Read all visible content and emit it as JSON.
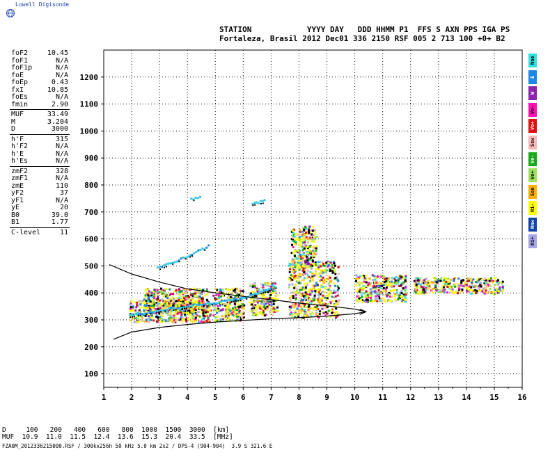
{
  "brand": {
    "name": "Lowell Digisonde",
    "icon": "globe-icon"
  },
  "header": {
    "labels": "STATION            YYYY DAY   DDD HHMM P1  FFS S AXN PPS IGA PS",
    "values": "Fortaleza, Brasil 2012 Dec01 336 2150 RSF 005 2 713 100 +0+ B2"
  },
  "params": [
    [
      {
        "k": "foF2",
        "v": "10.45"
      },
      {
        "k": "foF1",
        "v": "N/A"
      },
      {
        "k": "foF1p",
        "v": "N/A"
      },
      {
        "k": "foE",
        "v": "N/A"
      },
      {
        "k": "foEp",
        "v": "0.43"
      },
      {
        "k": "fxI",
        "v": "10.85"
      },
      {
        "k": "foEs",
        "v": "N/A"
      },
      {
        "k": "fmin",
        "v": "2.90"
      }
    ],
    [
      {
        "k": "MUF",
        "v": "33.49"
      },
      {
        "k": "M",
        "v": "3.204"
      },
      {
        "k": "D",
        "v": "3000"
      }
    ],
    [
      {
        "k": "h'F",
        "v": "315"
      },
      {
        "k": "h'F2",
        "v": "N/A"
      },
      {
        "k": "h'E",
        "v": "N/A"
      },
      {
        "k": "h'Es",
        "v": "N/A"
      }
    ],
    [
      {
        "k": "zmF2",
        "v": "328"
      },
      {
        "k": "zmF1",
        "v": "N/A"
      },
      {
        "k": "zmE",
        "v": "110"
      },
      {
        "k": "yF2",
        "v": "37"
      },
      {
        "k": "yF1",
        "v": "N/A"
      },
      {
        "k": "yE",
        "v": "20"
      },
      {
        "k": "B0",
        "v": "39.0"
      },
      {
        "k": "B1",
        "v": "1.77"
      }
    ],
    [
      {
        "k": "C-level",
        "v": "11"
      }
    ]
  ],
  "legend": [
    {
      "label": "Nne",
      "color": "#33e0e0"
    },
    {
      "label": "E",
      "color": "#1e88e5"
    },
    {
      "label": "W",
      "color": "#8e24aa"
    },
    {
      "label": "Vo-",
      "color": "#ff10b0"
    },
    {
      "label": "Vo+",
      "color": "#e01010"
    },
    {
      "label": "Ssw",
      "color": "#f8b8b8"
    },
    {
      "label": "Vo-",
      "color": "#17a817"
    },
    {
      "label": "Vo+",
      "color": "#9ee05a"
    },
    {
      "label": "Sse",
      "color": "#ffb000"
    },
    {
      "label": "Hi-",
      "color": "#ffff00"
    },
    {
      "label": "Nnw",
      "color": "#1144aa"
    },
    {
      "label": "Hi+",
      "color": "#a5a5e8"
    }
  ],
  "bottom": {
    "line1": "D     100   200   400   600   800  1000  1500  3000  [km]",
    "line2": "MUF  10.9  11.0  11.5  12.4  13.6  15.3  20.4  33.5  [MHz]",
    "line3": "FZA0M_2012336215000.RSF / 300kx256h 50 kHz 5.0 km 2x2 / DPS-4 (904-904)  3.9 S 321.6 E"
  },
  "chart_data": {
    "type": "scatter",
    "title": "",
    "xlabel": "",
    "ylabel": "",
    "xlim": [
      1,
      16
    ],
    "ylim": [
      50,
      1300
    ],
    "xticks": [
      "1",
      "2",
      "3",
      "4",
      "5",
      "6",
      "7",
      "8",
      "9",
      "10",
      "11",
      "12",
      "13",
      "14",
      "15",
      "16"
    ],
    "yticks": [
      "100",
      "200",
      "300",
      "400",
      "500",
      "600",
      "700",
      "800",
      "900",
      "1000",
      "1100",
      "1200"
    ],
    "grid": true,
    "clusters": [
      {
        "fmin": 1.9,
        "fmax": 4.8,
        "hmin": 295,
        "hmax": 375
      },
      {
        "fmin": 2.4,
        "fmax": 4.7,
        "hmin": 330,
        "hmax": 420
      },
      {
        "fmin": 4.9,
        "fmax": 6.0,
        "hmin": 300,
        "hmax": 420
      },
      {
        "fmin": 6.2,
        "fmax": 7.2,
        "hmin": 320,
        "hmax": 440
      },
      {
        "fmin": 7.6,
        "fmax": 9.4,
        "hmin": 310,
        "hmax": 520
      },
      {
        "fmin": 7.7,
        "fmax": 8.6,
        "hmin": 500,
        "hmax": 650
      },
      {
        "fmin": 10.0,
        "fmax": 11.8,
        "hmin": 370,
        "hmax": 470
      },
      {
        "fmin": 12.1,
        "fmax": 15.3,
        "hmin": 400,
        "hmax": 460
      }
    ],
    "traces": [
      {
        "name": "",
        "points": [
          [
            1.9,
            320
          ],
          [
            3.0,
            340
          ],
          [
            4.0,
            355
          ],
          [
            5.0,
            368
          ],
          [
            6.0,
            385
          ],
          [
            7.2,
            430
          ]
        ]
      },
      {
        "name": "",
        "points": [
          [
            2.9,
            495
          ],
          [
            3.5,
            520
          ],
          [
            4.2,
            550
          ],
          [
            4.8,
            580
          ]
        ]
      },
      {
        "name": "",
        "points": [
          [
            4.1,
            750
          ],
          [
            4.5,
            765
          ]
        ]
      },
      {
        "name": "",
        "points": [
          [
            6.3,
            735
          ],
          [
            6.8,
            745
          ]
        ]
      }
    ],
    "model_curves": {
      "lower": [
        [
          1.35,
          228
        ],
        [
          2,
          255
        ],
        [
          3,
          272
        ],
        [
          4,
          283
        ],
        [
          5,
          292
        ],
        [
          6,
          298
        ],
        [
          7,
          304
        ],
        [
          8,
          308
        ],
        [
          9,
          314
        ],
        [
          10,
          323
        ],
        [
          10.4,
          330
        ]
      ],
      "upper": [
        [
          1.2,
          505
        ],
        [
          2,
          470
        ],
        [
          3,
          440
        ],
        [
          4,
          415
        ],
        [
          5,
          400
        ],
        [
          6,
          387
        ],
        [
          7,
          375
        ],
        [
          8,
          362
        ],
        [
          9,
          352
        ],
        [
          10,
          340
        ],
        [
          10.4,
          330
        ]
      ]
    }
  }
}
